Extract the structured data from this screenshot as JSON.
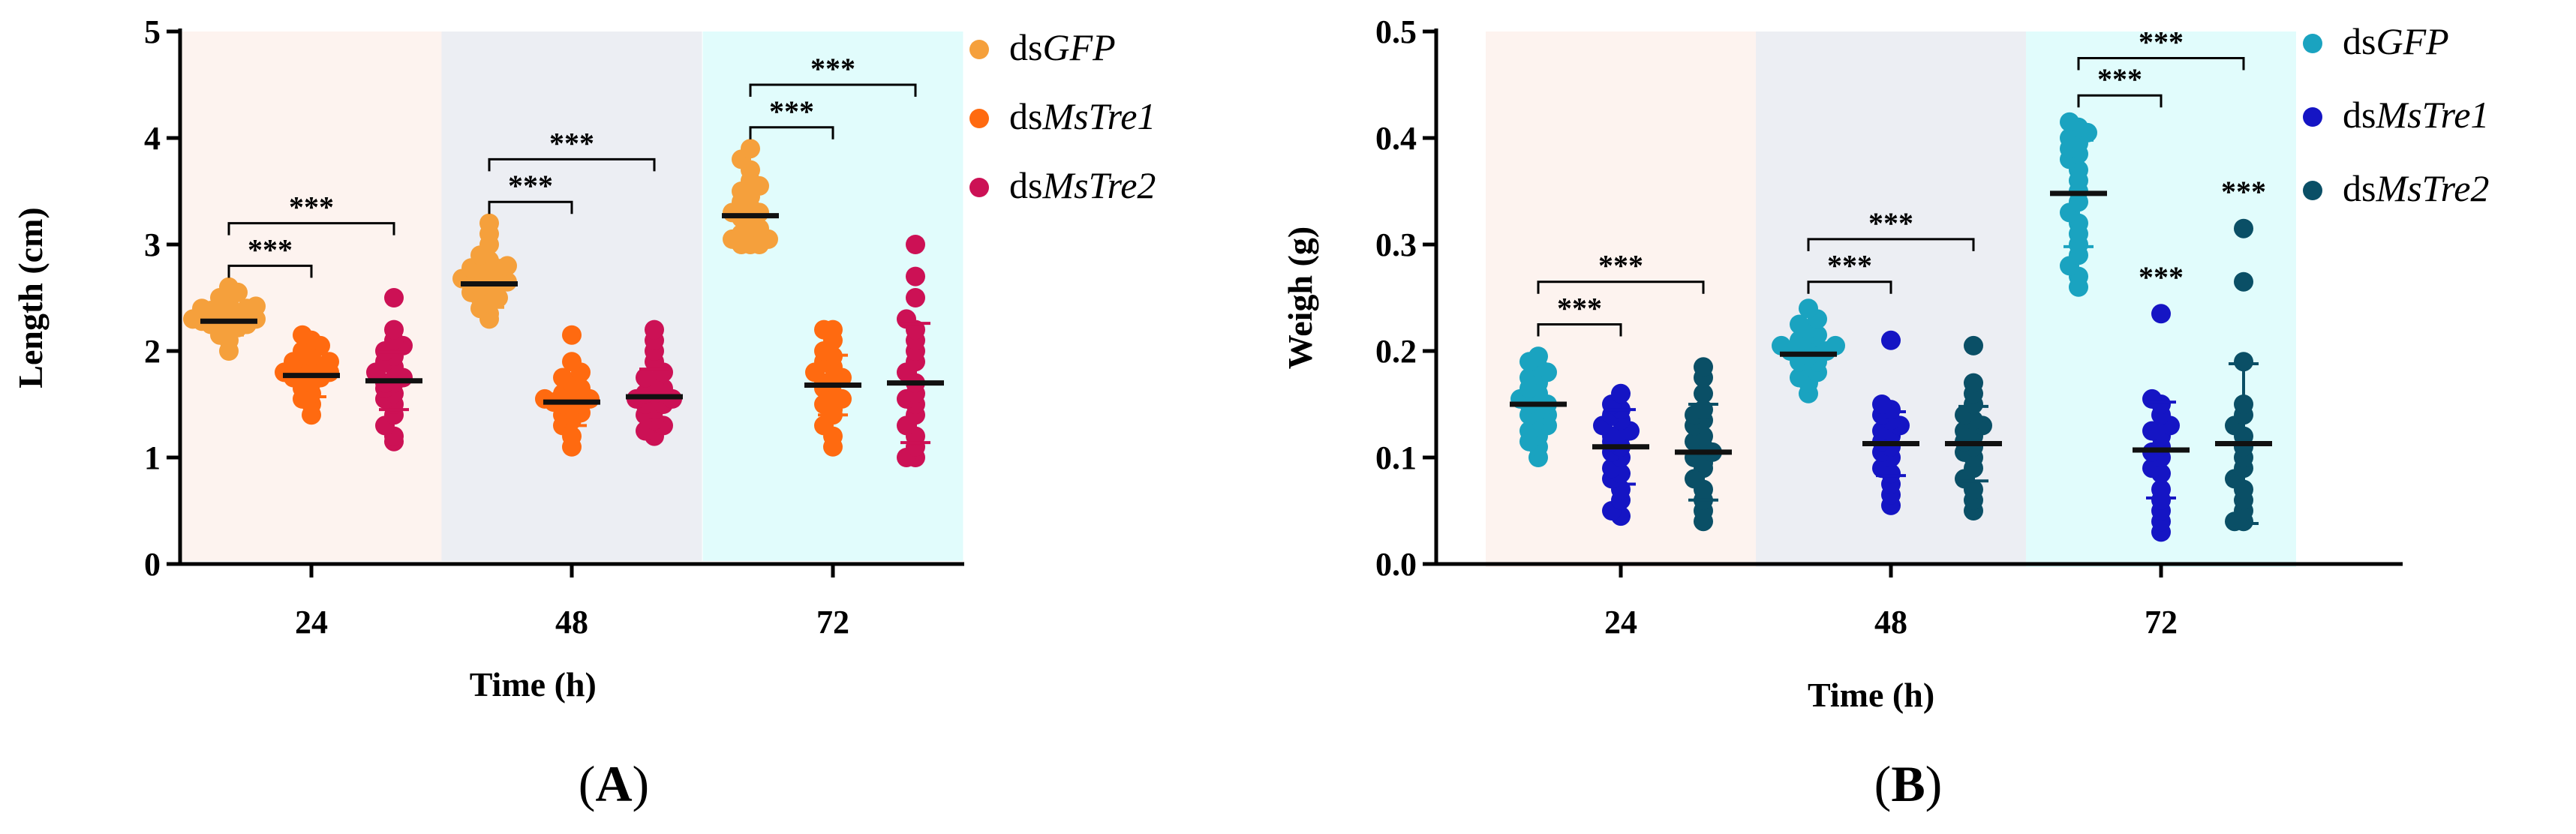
{
  "chart_data": [
    {
      "type": "scatter",
      "panel_label": {
        "open": "(",
        "letter": "A",
        "close": ")"
      },
      "xlabel": "Time (h)",
      "ylabel": "Length (cm)",
      "ylim": [
        0,
        5
      ],
      "yticks": [
        "0",
        "1",
        "2",
        "3",
        "4",
        "5"
      ],
      "categories": [
        "24",
        "48",
        "72"
      ],
      "background_colors": [
        "#fdf3ef",
        "#eceef3",
        "#e1fcfc"
      ],
      "legend": [
        {
          "prefix": "ds",
          "gene": "GFP",
          "color": "#f5a03c"
        },
        {
          "prefix": "ds",
          "gene": "MsTre1",
          "color": "#ff6a10"
        },
        {
          "prefix": "ds",
          "gene": "MsTre2",
          "color": "#cc1155"
        }
      ],
      "series": [
        {
          "name": "dsGFP",
          "color": "#f5a03c",
          "groups": [
            {
              "mean": 2.28,
              "sd": 0.13,
              "values": [
                2.0,
                2.1,
                2.15,
                2.2,
                2.2,
                2.22,
                2.25,
                2.25,
                2.28,
                2.3,
                2.3,
                2.32,
                2.35,
                2.35,
                2.38,
                2.4,
                2.4,
                2.42,
                2.45,
                2.5,
                2.55,
                2.6
              ]
            },
            {
              "mean": 2.63,
              "sd": 0.22,
              "values": [
                2.3,
                2.35,
                2.4,
                2.45,
                2.5,
                2.5,
                2.55,
                2.58,
                2.6,
                2.62,
                2.65,
                2.65,
                2.68,
                2.7,
                2.72,
                2.75,
                2.78,
                2.8,
                2.85,
                2.9,
                3.0,
                3.1,
                3.2
              ]
            },
            {
              "mean": 3.27,
              "sd": 0.26,
              "values": [
                3.0,
                3.0,
                3.0,
                3.05,
                3.05,
                3.1,
                3.1,
                3.15,
                3.2,
                3.25,
                3.3,
                3.3,
                3.35,
                3.4,
                3.45,
                3.5,
                3.55,
                3.6,
                3.7,
                3.8,
                3.9
              ]
            }
          ]
        },
        {
          "name": "dsMsTre1",
          "color": "#ff6a10",
          "groups": [
            {
              "mean": 1.77,
              "sd": 0.2,
              "values": [
                1.4,
                1.5,
                1.55,
                1.6,
                1.65,
                1.7,
                1.7,
                1.75,
                1.75,
                1.8,
                1.8,
                1.82,
                1.85,
                1.85,
                1.9,
                1.9,
                1.95,
                2.0,
                2.05,
                2.1,
                2.15
              ]
            },
            {
              "mean": 1.52,
              "sd": 0.22,
              "values": [
                1.1,
                1.2,
                1.3,
                1.35,
                1.4,
                1.42,
                1.45,
                1.5,
                1.5,
                1.52,
                1.55,
                1.55,
                1.58,
                1.6,
                1.65,
                1.7,
                1.75,
                1.8,
                1.9,
                2.15
              ]
            },
            {
              "mean": 1.68,
              "sd": 0.28,
              "values": [
                1.1,
                1.2,
                1.3,
                1.4,
                1.45,
                1.5,
                1.55,
                1.6,
                1.65,
                1.7,
                1.7,
                1.75,
                1.8,
                1.85,
                1.9,
                1.95,
                2.0,
                2.1,
                2.2,
                2.2
              ]
            }
          ]
        },
        {
          "name": "dsMsTre2",
          "color": "#cc1155",
          "groups": [
            {
              "mean": 1.72,
              "sd": 0.27,
              "values": [
                1.15,
                1.2,
                1.3,
                1.4,
                1.5,
                1.55,
                1.6,
                1.65,
                1.7,
                1.7,
                1.75,
                1.8,
                1.85,
                1.9,
                1.95,
                2.0,
                2.05,
                2.1,
                2.2,
                2.5
              ]
            },
            {
              "mean": 1.57,
              "sd": 0.26,
              "values": [
                1.2,
                1.25,
                1.3,
                1.35,
                1.4,
                1.45,
                1.5,
                1.5,
                1.55,
                1.55,
                1.6,
                1.6,
                1.65,
                1.7,
                1.75,
                1.8,
                1.9,
                2.0,
                2.1,
                2.2
              ]
            },
            {
              "mean": 1.7,
              "sd": 0.56,
              "values": [
                1.0,
                1.0,
                1.1,
                1.2,
                1.3,
                1.4,
                1.5,
                1.55,
                1.6,
                1.7,
                1.8,
                1.9,
                2.0,
                2.1,
                2.2,
                2.3,
                2.5,
                2.7,
                3.0
              ]
            }
          ]
        }
      ],
      "significance": [
        {
          "category": 0,
          "from": 0,
          "to": 1,
          "y": 2.8,
          "label": "***"
        },
        {
          "category": 0,
          "from": 0,
          "to": 2,
          "y": 3.2,
          "label": "***"
        },
        {
          "category": 1,
          "from": 0,
          "to": 1,
          "y": 3.4,
          "label": "***"
        },
        {
          "category": 1,
          "from": 0,
          "to": 2,
          "y": 3.8,
          "label": "***"
        },
        {
          "category": 2,
          "from": 0,
          "to": 1,
          "y": 4.1,
          "label": "***"
        },
        {
          "category": 2,
          "from": 0,
          "to": 2,
          "y": 4.5,
          "label": "***"
        }
      ],
      "point_labels": []
    },
    {
      "type": "scatter",
      "panel_label": {
        "open": "(",
        "letter": "B",
        "close": ")"
      },
      "xlabel": "Time (h)",
      "ylabel": "Weigh (g)",
      "ylim": [
        0,
        0.5
      ],
      "yticks": [
        "0.0",
        "0.1",
        "0.2",
        "0.3",
        "0.4",
        "0.5"
      ],
      "categories": [
        "24",
        "48",
        "72"
      ],
      "background_colors": [
        "#fdf3ef",
        "#eceef3",
        "#e1fcfc"
      ],
      "legend": [
        {
          "prefix": "ds",
          "gene": "GFP",
          "color": "#1aa3c0"
        },
        {
          "prefix": "ds",
          "gene": "MsTre1",
          "color": "#1515c4"
        },
        {
          "prefix": "ds",
          "gene": "MsTre2",
          "color": "#0a4f66"
        }
      ],
      "series": [
        {
          "name": "dsGFP",
          "color": "#1aa3c0",
          "groups": [
            {
              "mean": 0.15,
              "sd": 0.025,
              "values": [
                0.1,
                0.11,
                0.115,
                0.12,
                0.125,
                0.13,
                0.135,
                0.14,
                0.14,
                0.145,
                0.15,
                0.15,
                0.155,
                0.16,
                0.165,
                0.17,
                0.175,
                0.18,
                0.185,
                0.19,
                0.195
              ]
            },
            {
              "mean": 0.197,
              "sd": 0.018,
              "values": [
                0.16,
                0.17,
                0.175,
                0.18,
                0.185,
                0.19,
                0.19,
                0.195,
                0.195,
                0.2,
                0.2,
                0.2,
                0.205,
                0.205,
                0.21,
                0.21,
                0.215,
                0.22,
                0.225,
                0.23,
                0.24
              ]
            },
            {
              "mean": 0.348,
              "sd": 0.05,
              "values": [
                0.26,
                0.27,
                0.28,
                0.29,
                0.3,
                0.31,
                0.32,
                0.33,
                0.34,
                0.35,
                0.36,
                0.37,
                0.38,
                0.385,
                0.39,
                0.395,
                0.4,
                0.405,
                0.41,
                0.415
              ]
            }
          ]
        },
        {
          "name": "dsMsTre1",
          "color": "#1515c4",
          "groups": [
            {
              "mean": 0.11,
              "sd": 0.035,
              "values": [
                0.045,
                0.05,
                0.06,
                0.07,
                0.08,
                0.085,
                0.09,
                0.1,
                0.105,
                0.11,
                0.115,
                0.12,
                0.12,
                0.125,
                0.13,
                0.135,
                0.14,
                0.145,
                0.15,
                0.16
              ]
            },
            {
              "mean": 0.113,
              "sd": 0.03,
              "values": [
                0.055,
                0.065,
                0.075,
                0.085,
                0.09,
                0.1,
                0.105,
                0.11,
                0.115,
                0.12,
                0.125,
                0.13,
                0.135,
                0.14,
                0.145,
                0.15,
                0.21
              ]
            },
            {
              "mean": 0.107,
              "sd": 0.045,
              "values": [
                0.03,
                0.04,
                0.05,
                0.06,
                0.07,
                0.085,
                0.09,
                0.1,
                0.105,
                0.11,
                0.12,
                0.125,
                0.13,
                0.14,
                0.15,
                0.155,
                0.235
              ]
            }
          ]
        },
        {
          "name": "dsMsTre2",
          "color": "#0a4f66",
          "groups": [
            {
              "mean": 0.105,
              "sd": 0.045,
              "values": [
                0.04,
                0.05,
                0.06,
                0.07,
                0.08,
                0.09,
                0.095,
                0.1,
                0.105,
                0.11,
                0.115,
                0.12,
                0.13,
                0.135,
                0.14,
                0.145,
                0.16,
                0.175,
                0.185
              ]
            },
            {
              "mean": 0.113,
              "sd": 0.035,
              "values": [
                0.05,
                0.06,
                0.07,
                0.08,
                0.09,
                0.1,
                0.105,
                0.11,
                0.115,
                0.12,
                0.125,
                0.13,
                0.135,
                0.14,
                0.15,
                0.16,
                0.17,
                0.205
              ]
            },
            {
              "mean": 0.113,
              "sd": 0.075,
              "values": [
                0.04,
                0.04,
                0.05,
                0.06,
                0.07,
                0.08,
                0.09,
                0.1,
                0.11,
                0.12,
                0.13,
                0.14,
                0.15,
                0.19,
                0.265,
                0.315
              ]
            }
          ]
        }
      ],
      "significance": [
        {
          "category": 0,
          "from": 0,
          "to": 1,
          "y": 0.225,
          "label": "***"
        },
        {
          "category": 0,
          "from": 0,
          "to": 2,
          "y": 0.265,
          "label": "***"
        },
        {
          "category": 1,
          "from": 0,
          "to": 1,
          "y": 0.265,
          "label": "***"
        },
        {
          "category": 1,
          "from": 0,
          "to": 2,
          "y": 0.305,
          "label": "***"
        },
        {
          "category": 2,
          "from": 0,
          "to": 1,
          "y": 0.44,
          "label": "***"
        },
        {
          "category": 2,
          "from": 0,
          "to": 2,
          "y": 0.475,
          "label": "***"
        }
      ],
      "point_labels": [
        {
          "category": 2,
          "series": 1,
          "y": 0.26,
          "label": "***"
        },
        {
          "category": 2,
          "series": 2,
          "y": 0.34,
          "label": "***"
        }
      ]
    }
  ]
}
